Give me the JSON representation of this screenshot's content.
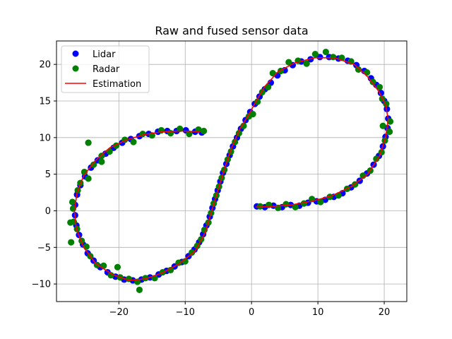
{
  "chart_data": {
    "type": "scatter",
    "title": "Raw and fused sensor data",
    "xlabel": "",
    "ylabel": "",
    "xlim": [
      -29.4,
      23.4
    ],
    "ylim": [
      -12.4,
      23.2
    ],
    "xticks": [
      -20,
      -10,
      0,
      10,
      20
    ],
    "xtick_labels": [
      "−20",
      "−10",
      "0",
      "10",
      "20"
    ],
    "yticks": [
      -10,
      -5,
      0,
      5,
      10,
      15,
      20
    ],
    "ytick_labels": [
      "−10",
      "−5",
      "0",
      "5",
      "10",
      "15",
      "20"
    ],
    "grid": true,
    "legend_position": "top-left",
    "legend": [
      {
        "label": "Lidar",
        "marker": "circle",
        "color": "#0000ff"
      },
      {
        "label": "Radar",
        "marker": "circle",
        "color": "#008000"
      },
      {
        "label": "Estimation",
        "marker": "line",
        "color": "#ff0000"
      }
    ],
    "estimation_path": [
      [
        0.6,
        0.5
      ],
      [
        3,
        0.6
      ],
      [
        6,
        0.8
      ],
      [
        9,
        1.3
      ],
      [
        12,
        2
      ],
      [
        15,
        3.3
      ],
      [
        17.5,
        5
      ],
      [
        19.3,
        7.5
      ],
      [
        20.2,
        10
      ],
      [
        20.6,
        12.5
      ],
      [
        20.2,
        14.5
      ],
      [
        19.2,
        16.3
      ],
      [
        17.5,
        18.3
      ],
      [
        15.5,
        20
      ],
      [
        12.5,
        20.9
      ],
      [
        9.5,
        20.9
      ],
      [
        6.5,
        20.2
      ],
      [
        4,
        19
      ],
      [
        2,
        17
      ],
      [
        0.7,
        15
      ],
      [
        -0.5,
        13
      ],
      [
        -1.7,
        11.3
      ],
      [
        -3,
        8.6
      ],
      [
        -4,
        6
      ],
      [
        -5,
        3
      ],
      [
        -6,
        0
      ],
      [
        -7,
        -3
      ],
      [
        -8.5,
        -5.5
      ],
      [
        -11,
        -7.3
      ],
      [
        -13.5,
        -8.5
      ],
      [
        -16,
        -9.3
      ],
      [
        -18.5,
        -9.5
      ],
      [
        -21,
        -8.7
      ],
      [
        -23.5,
        -7.2
      ],
      [
        -25.3,
        -5
      ],
      [
        -26.4,
        -2.5
      ],
      [
        -26.7,
        0
      ],
      [
        -26.3,
        2.5
      ],
      [
        -25.3,
        4.8
      ],
      [
        -23.6,
        6.8
      ],
      [
        -21.4,
        8.6
      ],
      [
        -18.8,
        9.7
      ],
      [
        -16.2,
        10.4
      ],
      [
        -13.5,
        10.8
      ],
      [
        -10.5,
        10.9
      ],
      [
        -7.8,
        10.8
      ]
    ],
    "series": [
      {
        "name": "Lidar",
        "color": "#0000ff",
        "points": [
          [
            0.8,
            0.6
          ],
          [
            2,
            0.5
          ],
          [
            3.3,
            0.7
          ],
          [
            4.6,
            0.5
          ],
          [
            5.9,
            0.8
          ],
          [
            7.2,
            0.7
          ],
          [
            8.5,
            1.1
          ],
          [
            9.8,
            1.3
          ],
          [
            11.1,
            1.5
          ],
          [
            12.4,
            1.9
          ],
          [
            13.7,
            2.4
          ],
          [
            15,
            3.2
          ],
          [
            16.3,
            4.1
          ],
          [
            17.4,
            5.1
          ],
          [
            18.4,
            6.3
          ],
          [
            19.2,
            7.5
          ],
          [
            19.8,
            8.8
          ],
          [
            20.2,
            10.1
          ],
          [
            20.5,
            11.3
          ],
          [
            20.6,
            12.6
          ],
          [
            20.4,
            13.9
          ],
          [
            20,
            15
          ],
          [
            19.5,
            16.1
          ],
          [
            18.8,
            17.2
          ],
          [
            18,
            18.1
          ],
          [
            17,
            19.1
          ],
          [
            15.8,
            19.9
          ],
          [
            14.5,
            20.5
          ],
          [
            13.1,
            20.8
          ],
          [
            11.7,
            21
          ],
          [
            10.3,
            21
          ],
          [
            8.9,
            20.7
          ],
          [
            7.5,
            20.4
          ],
          [
            6.2,
            19.9
          ],
          [
            5,
            19.2
          ],
          [
            3.9,
            18.5
          ],
          [
            2.9,
            17.5
          ],
          [
            2,
            16.6
          ],
          [
            1.2,
            15.6
          ],
          [
            0.5,
            14.6
          ],
          [
            -0.2,
            13.5
          ],
          [
            -0.9,
            12.4
          ],
          [
            -1.6,
            11.2
          ],
          [
            -2.2,
            10
          ],
          [
            -2.8,
            8.8
          ],
          [
            -3.3,
            7.6
          ],
          [
            -3.8,
            6.4
          ],
          [
            -4.3,
            5.2
          ],
          [
            -4.7,
            4
          ],
          [
            -5.1,
            2.8
          ],
          [
            -5.5,
            1.6
          ],
          [
            -5.9,
            0.4
          ],
          [
            -6.3,
            -0.8
          ],
          [
            -6.8,
            -2
          ],
          [
            -7.3,
            -3.2
          ],
          [
            -7.9,
            -4.3
          ],
          [
            -8.6,
            -5.3
          ],
          [
            -9.5,
            -6.2
          ],
          [
            -10.5,
            -7
          ],
          [
            -11.6,
            -7.6
          ],
          [
            -12.8,
            -8.2
          ],
          [
            -14,
            -8.7
          ],
          [
            -15.3,
            -9.1
          ],
          [
            -16.6,
            -9.4
          ],
          [
            -17.9,
            -9.5
          ],
          [
            -19.2,
            -9.4
          ],
          [
            -20.5,
            -9
          ],
          [
            -21.7,
            -8.4
          ],
          [
            -22.8,
            -7.7
          ],
          [
            -23.8,
            -6.8
          ],
          [
            -24.7,
            -5.8
          ],
          [
            -25.4,
            -4.6
          ],
          [
            -26,
            -3.3
          ],
          [
            -26.4,
            -2
          ],
          [
            -26.6,
            -0.6
          ],
          [
            -26.6,
            0.8
          ],
          [
            -26.3,
            2.2
          ],
          [
            -25.8,
            3.5
          ],
          [
            -25.1,
            4.7
          ],
          [
            -24.2,
            5.9
          ],
          [
            -23.2,
            6.9
          ],
          [
            -22,
            7.8
          ],
          [
            -20.8,
            8.6
          ],
          [
            -19.5,
            9.3
          ],
          [
            -18.2,
            9.8
          ],
          [
            -16.9,
            10.2
          ],
          [
            -15.5,
            10.5
          ],
          [
            -14.1,
            10.8
          ],
          [
            -12.7,
            10.9
          ],
          [
            -11.3,
            10.9
          ],
          [
            -9.9,
            11
          ],
          [
            -8.5,
            10.8
          ],
          [
            -7.5,
            10.7
          ]
        ]
      },
      {
        "name": "Radar",
        "color": "#008000",
        "points": [
          [
            1.3,
            0.6
          ],
          [
            2.6,
            0.8
          ],
          [
            4,
            0.4
          ],
          [
            5.2,
            0.9
          ],
          [
            6.6,
            0.5
          ],
          [
            7.9,
            1
          ],
          [
            9.1,
            1.6
          ],
          [
            10.4,
            1.2
          ],
          [
            11.8,
            1.9
          ],
          [
            13.1,
            2.1
          ],
          [
            14.4,
            3
          ],
          [
            15.6,
            3.6
          ],
          [
            16.8,
            4.8
          ],
          [
            17.9,
            5.5
          ],
          [
            18.8,
            7.1
          ],
          [
            19.6,
            8
          ],
          [
            20.1,
            9.6
          ],
          [
            20.8,
            10.8
          ],
          [
            19.8,
            11.6
          ],
          [
            20.9,
            12.2
          ],
          [
            20.3,
            14.6
          ],
          [
            19.7,
            15.3
          ],
          [
            19.3,
            16.9
          ],
          [
            18.3,
            17.6
          ],
          [
            17.4,
            18.9
          ],
          [
            16.1,
            19.3
          ],
          [
            15,
            20.4
          ],
          [
            13.6,
            20.9
          ],
          [
            12.3,
            21
          ],
          [
            11.2,
            21.7
          ],
          [
            9.6,
            21.4
          ],
          [
            8.3,
            20.1
          ],
          [
            7,
            20.5
          ],
          [
            5.6,
            20.3
          ],
          [
            4.4,
            19.1
          ],
          [
            3.2,
            18.8
          ],
          [
            2.5,
            16.9
          ],
          [
            1.6,
            16.2
          ],
          [
            0.9,
            14.9
          ],
          [
            0.2,
            13.2
          ],
          [
            -0.4,
            12.9
          ],
          [
            -1.2,
            11.6
          ],
          [
            -1.9,
            10.6
          ],
          [
            -2.5,
            9.4
          ],
          [
            -3.1,
            8.1
          ],
          [
            -3.6,
            7
          ],
          [
            -4.1,
            5.6
          ],
          [
            -4.5,
            4.5
          ],
          [
            -4.9,
            3.3
          ],
          [
            -5.3,
            2.1
          ],
          [
            -5.7,
            1
          ],
          [
            -6.1,
            -0.3
          ],
          [
            -6.5,
            -1.6
          ],
          [
            -7.1,
            -2.6
          ],
          [
            -7.6,
            -3.9
          ],
          [
            -8.2,
            -4.8
          ],
          [
            -9,
            -5.7
          ],
          [
            -10,
            -6.9
          ],
          [
            -11,
            -7.1
          ],
          [
            -12.2,
            -8.1
          ],
          [
            -13.4,
            -8.4
          ],
          [
            -14.6,
            -9.2
          ],
          [
            -16,
            -9.2
          ],
          [
            -17.2,
            -9.7
          ],
          [
            -16.9,
            -10.8
          ],
          [
            -18.5,
            -9.3
          ],
          [
            -19.8,
            -9.1
          ],
          [
            -20.2,
            -7.7
          ],
          [
            -21.2,
            -8.8
          ],
          [
            -22.3,
            -7.5
          ],
          [
            -23.3,
            -7.4
          ],
          [
            -24.3,
            -6.2
          ],
          [
            -24.9,
            -4.9
          ],
          [
            -25.6,
            -4.1
          ],
          [
            -26.3,
            -2.5
          ],
          [
            -26.8,
            -1.5
          ],
          [
            -27.3,
            -1.6
          ],
          [
            -26.9,
            0.3
          ],
          [
            -27,
            1.2
          ],
          [
            -26.2,
            2.8
          ],
          [
            -25.8,
            3.8
          ],
          [
            -25.2,
            5.3
          ],
          [
            -24.6,
            4.4
          ],
          [
            -23.8,
            6.3
          ],
          [
            -22.6,
            7.5
          ],
          [
            -21.4,
            8.1
          ],
          [
            -20.4,
            8.9
          ],
          [
            -19.1,
            9.7
          ],
          [
            -17.8,
            9.4
          ],
          [
            -16.4,
            10.5
          ],
          [
            -15,
            10.3
          ],
          [
            -13.6,
            11
          ],
          [
            -12.2,
            10.6
          ],
          [
            -10.8,
            11.2
          ],
          [
            -9.4,
            10.5
          ],
          [
            -8,
            11.1
          ],
          [
            -7.2,
            10.9
          ],
          [
            -27.2,
            -4.3
          ],
          [
            -24.6,
            9.3
          ],
          [
            -22.6,
            6.7
          ]
        ]
      }
    ]
  }
}
